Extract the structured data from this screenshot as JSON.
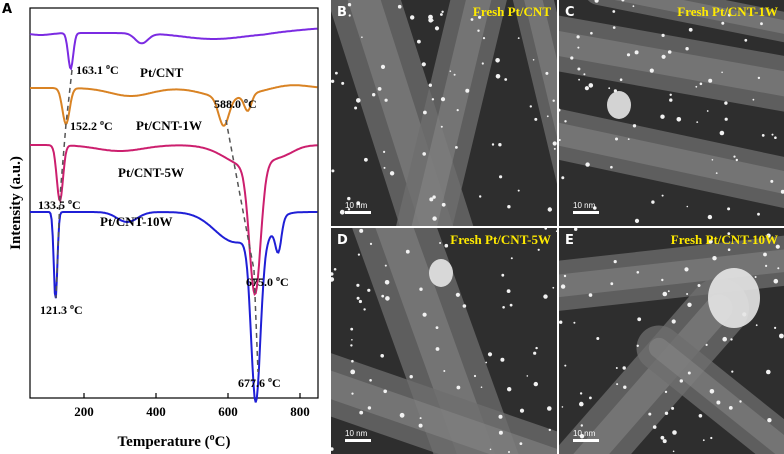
{
  "panel_a": {
    "letter": "A",
    "ylabel": "Intensity (a.u.)",
    "xlabel_main": "Temperature (",
    "xlabel_sup": "o",
    "xlabel_end": "C)"
  },
  "chart_data": {
    "type": "line",
    "xlim": [
      50,
      850
    ],
    "xticks": [
      "200",
      "400",
      "600",
      "800"
    ],
    "xtick_values": [
      200,
      400,
      600,
      800
    ],
    "ylabel": "Intensity (a.u.)",
    "xlabel": "Temperature (oC)",
    "grid": false,
    "legend": "none",
    "series": [
      {
        "name": "Pt/CNT",
        "color": "#7b2be2",
        "peaks": [
          {
            "label": "163.1 oC",
            "x": 163.1
          }
        ]
      },
      {
        "name": "Pt/CNT-1W",
        "color": "#d98324",
        "peaks": [
          {
            "label": "152.2 oC",
            "x": 152.2
          },
          {
            "label": "588.0 oC",
            "x": 588.0
          }
        ]
      },
      {
        "name": "Pt/CNT-5W",
        "color": "#cc1f6e",
        "peaks": [
          {
            "label": "133.5 oC",
            "x": 133.5
          },
          {
            "label": "675.0 oC",
            "x": 675.0
          }
        ]
      },
      {
        "name": "Pt/CNT-10W",
        "color": "#1f1fd6",
        "peaks": [
          {
            "label": "121.3 oC",
            "x": 121.3
          },
          {
            "label": "677.6 oC",
            "x": 677.6
          }
        ]
      }
    ]
  },
  "tem_panels": [
    {
      "letter": "B",
      "title": "Fresh Pt/CNT",
      "scale": "10 nm"
    },
    {
      "letter": "C",
      "title": "Fresh Pt/CNT-1W",
      "scale": "10 nm"
    },
    {
      "letter": "D",
      "title": "Fresh Pt/CNT-5W",
      "scale": "10 nm"
    },
    {
      "letter": "E",
      "title": "Fresh Pt/CNT-10W",
      "scale": "10 nm"
    }
  ]
}
